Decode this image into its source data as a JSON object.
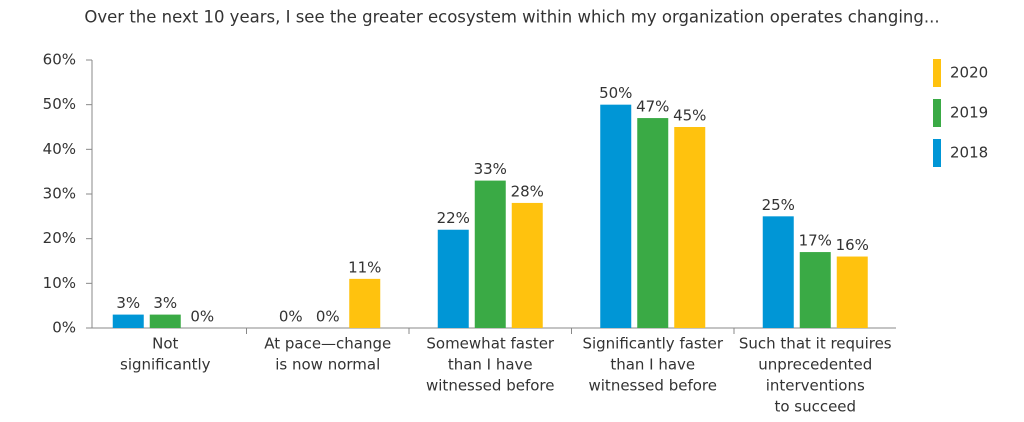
{
  "chart_data": {
    "type": "bar",
    "title": "Over the next 10 years, I see the greater ecosystem within which my organization operates changing...",
    "categories": [
      [
        "Not",
        "significantly"
      ],
      [
        "At pace—change",
        "is now normal"
      ],
      [
        "Somewhat faster",
        "than I have",
        "witnessed before"
      ],
      [
        "Significantly faster",
        "than I have",
        "witnessed before"
      ],
      [
        "Such that it requires",
        "unprecedented",
        "interventions",
        "to succeed"
      ]
    ],
    "series": [
      {
        "name": "2018",
        "color": "#0096d6",
        "values": [
          3,
          0,
          22,
          50,
          25
        ],
        "value_labels": [
          "3%",
          "0%",
          "22%",
          "50%",
          "25%"
        ]
      },
      {
        "name": "2019",
        "color": "#3aaa45",
        "values": [
          3,
          0,
          33,
          47,
          17
        ],
        "value_labels": [
          "3%",
          "0%",
          "33%",
          "47%",
          "17%"
        ]
      },
      {
        "name": "2020",
        "color": "#ffc20e",
        "values": [
          0,
          11,
          28,
          45,
          16
        ],
        "value_labels": [
          "0%",
          "11%",
          "28%",
          "45%",
          "16%"
        ]
      }
    ],
    "ylim": [
      0,
      60
    ],
    "yticks": [
      {
        "value": 0,
        "label": "0%"
      },
      {
        "value": 10,
        "label": "10%"
      },
      {
        "value": 20,
        "label": "20%"
      },
      {
        "value": 30,
        "label": "30%"
      },
      {
        "value": 40,
        "label": "40%"
      },
      {
        "value": 50,
        "label": "50%"
      },
      {
        "value": 60,
        "label": "60%"
      }
    ],
    "legend": "right"
  }
}
